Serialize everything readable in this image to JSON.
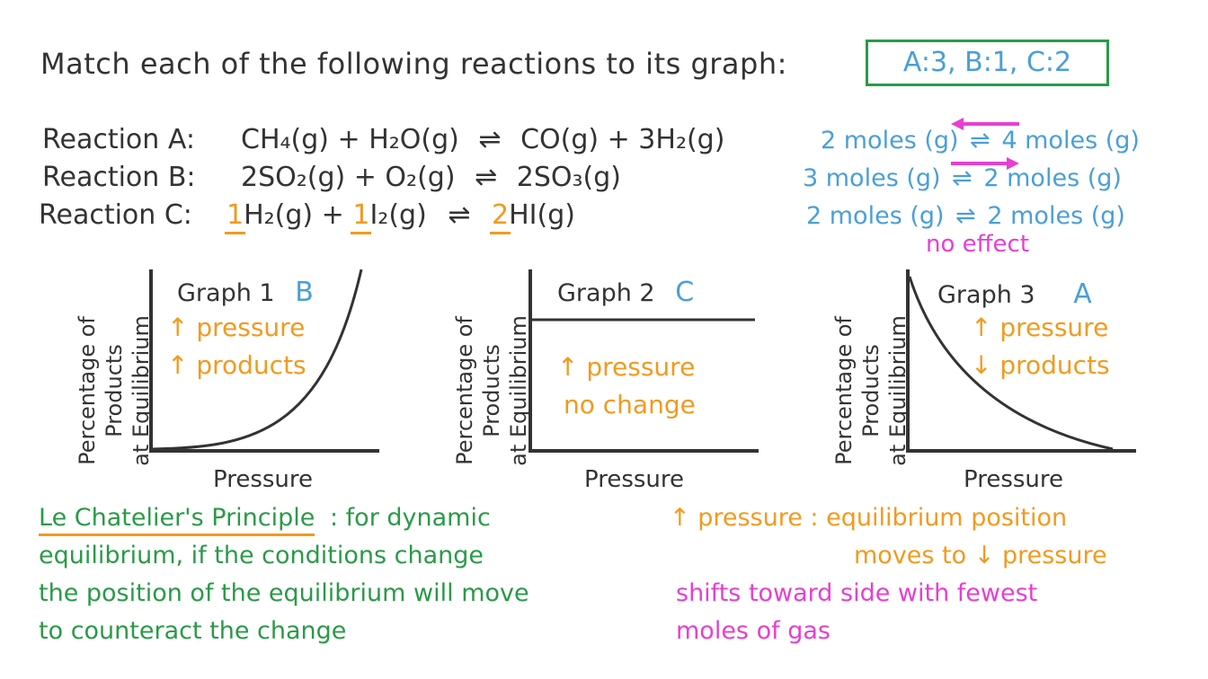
{
  "question": "Match each of the following reactions to its graph:",
  "answer": "A:3, B:1, C:2",
  "reactions": [
    {
      "label": "Reaction A:",
      "lhs": "CH₄(g) + H₂O(g)",
      "arrow": "⇌",
      "rhs": "CO(g) + 3H₂(g)",
      "moles_left": "2 moles (g)",
      "moles_right": "4 moles (g)"
    },
    {
      "label": "Reaction B:",
      "lhs": "2SO₂(g) + O₂(g)",
      "arrow": "⇌",
      "rhs": "2SO₃(g)",
      "moles_left": "3 moles (g)",
      "moles_right": "2 moles (g)"
    },
    {
      "label": "Reaction C:",
      "coef1": "1",
      "sp1": "H₂(g) +",
      "coef2": "1",
      "sp2": "I₂(g)",
      "arrow": "⇌",
      "coef3": "2",
      "sp3": "HI(g)",
      "moles_left": "2 moles (g)",
      "moles_right": "2 moles (g)",
      "note": "no effect"
    }
  ],
  "graphs": [
    {
      "title": "Graph 1",
      "match": "B",
      "ylabel_lines": [
        "Percentage of",
        "Products",
        "at Equilibrium"
      ],
      "xlabel": "Pressure",
      "note_lines": [
        "↑ pressure",
        "↑ products"
      ],
      "trend": "increasing"
    },
    {
      "title": "Graph 2",
      "match": "C",
      "ylabel_lines": [
        "Percentage of",
        "Products",
        "at Equilibrium"
      ],
      "xlabel": "Pressure",
      "note_lines": [
        "↑ pressure",
        "no change"
      ],
      "trend": "constant"
    },
    {
      "title": "Graph 3",
      "match": "A",
      "ylabel_lines": [
        "Percentage of",
        "Products",
        "at Equilibrium"
      ],
      "xlabel": "Pressure",
      "note_lines": [
        "↑ pressure",
        "↓ products"
      ],
      "trend": "decreasing"
    }
  ],
  "principle": {
    "term": "Le Chatelier's Principle",
    "lines": [
      ": for dynamic",
      "equilibrium, if the conditions change",
      "the position of the equilibrium will move",
      "to counteract the change"
    ]
  },
  "pressure_note": {
    "line1": "↑ pressure : equilibrium position",
    "line2": "moves to ↓ pressure",
    "shift_line1": "shifts toward side with fewest",
    "shift_line2": "moles of gas"
  },
  "colors": {
    "green": "#2a9a48",
    "blue": "#4a9fd8",
    "orange": "#f29a1e",
    "magenta": "#e63fd2",
    "ink": "#333333"
  }
}
